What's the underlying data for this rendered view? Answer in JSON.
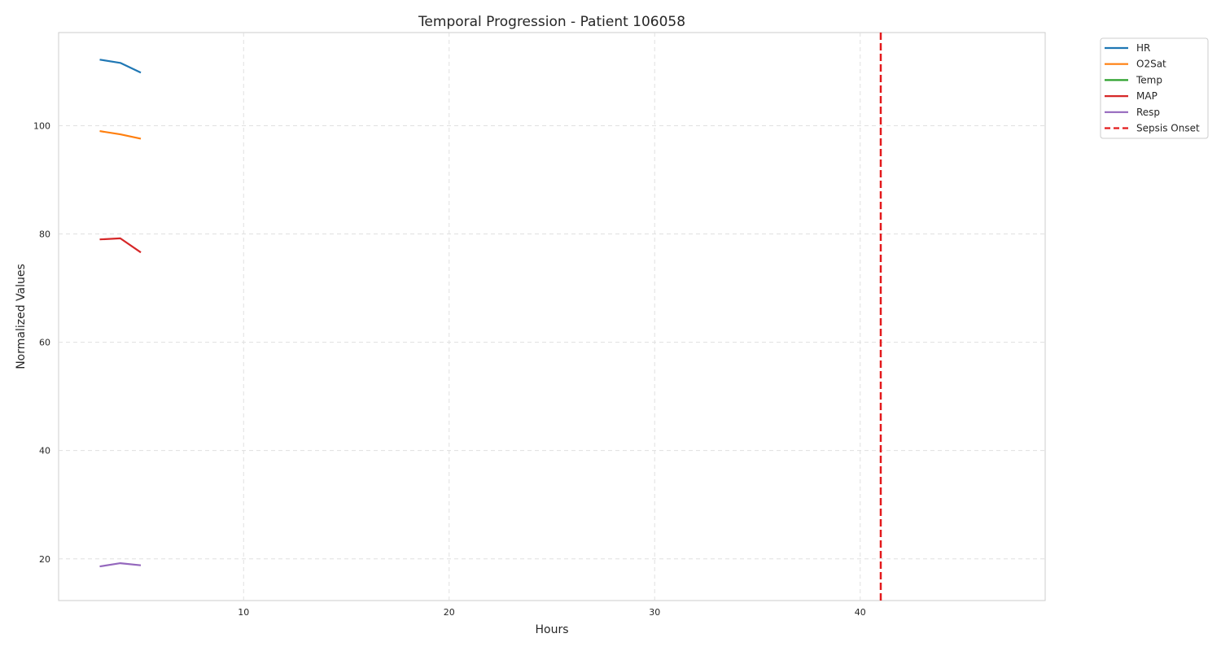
{
  "chart_data": {
    "type": "line",
    "title": "Temporal Progression - Patient 106058",
    "xlabel": "Hours",
    "ylabel": "Normalized Values",
    "xlim": [
      1,
      49
    ],
    "ylim": [
      12.3,
      117.2
    ],
    "xticks": [
      10,
      20,
      30,
      40
    ],
    "yticks": [
      20,
      40,
      60,
      80,
      100
    ],
    "grid": true,
    "grid_style": "dashed",
    "legend_position": "outside top-right",
    "series": [
      {
        "name": "HR",
        "color": "#1f77b4",
        "x": [
          3,
          4,
          5
        ],
        "y": [
          112.2,
          111.6,
          109.8
        ]
      },
      {
        "name": "O2Sat",
        "color": "#ff7f0e",
        "x": [
          3,
          4,
          5
        ],
        "y": [
          99.0,
          98.4,
          97.6
        ]
      },
      {
        "name": "Temp",
        "color": "#2ca02c",
        "x": [],
        "y": []
      },
      {
        "name": "MAP",
        "color": "#d62728",
        "x": [
          3,
          4,
          5
        ],
        "y": [
          79.0,
          79.2,
          76.6
        ]
      },
      {
        "name": "Resp",
        "color": "#9467bd",
        "x": [
          3,
          4,
          5
        ],
        "y": [
          18.6,
          19.2,
          18.8
        ]
      }
    ],
    "vlines": [
      {
        "name": "Sepsis Onset",
        "color": "#e31a1c",
        "style": "dashed",
        "x": 41
      }
    ]
  }
}
